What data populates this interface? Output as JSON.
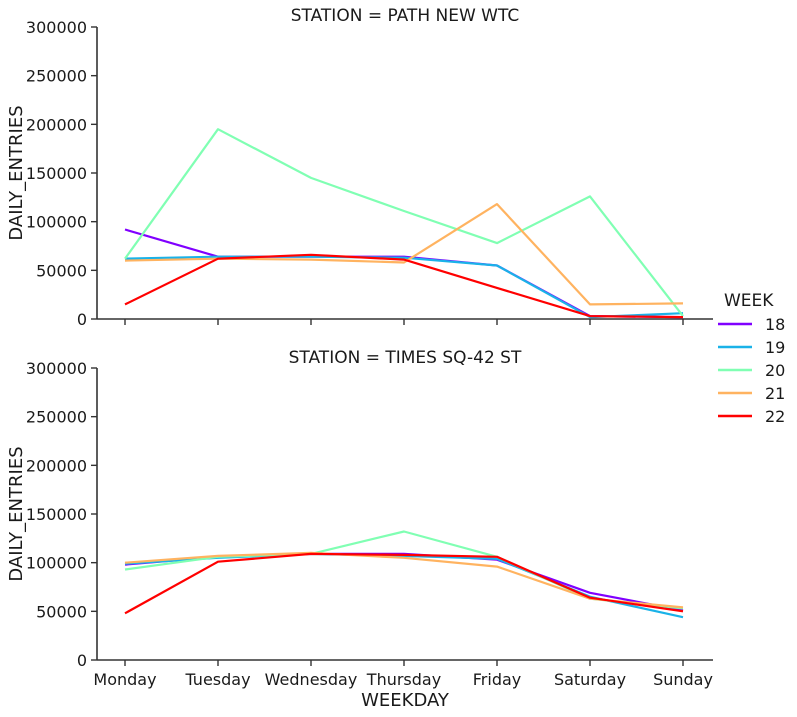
{
  "chart_data": {
    "type": "line",
    "xlabel": "WEEKDAY",
    "ylabel": "DAILY_ENTRIES",
    "ylim": [
      0,
      300000
    ],
    "yticks": [
      0,
      50000,
      100000,
      150000,
      200000,
      250000,
      300000
    ],
    "x": [
      "Monday",
      "Tuesday",
      "Wednesday",
      "Thursday",
      "Friday",
      "Saturday",
      "Sunday"
    ],
    "legend": {
      "title": "WEEK",
      "placement": "right"
    },
    "series_colors": {
      "18": "#8000ff",
      "19": "#1ab2e8",
      "20": "#80ffb3",
      "21": "#ffb360",
      "22": "#ff0000"
    },
    "facets": [
      {
        "title": "STATION = PATH NEW WTC",
        "series": [
          {
            "name": "18",
            "values": [
              92000,
              64000,
              64000,
              64000,
              55000,
              3000,
              2000
            ]
          },
          {
            "name": "19",
            "values": [
              62000,
              64000,
              64000,
              63000,
              55000,
              2000,
              6000
            ]
          },
          {
            "name": "20",
            "values": [
              62000,
              195000,
              145000,
              111000,
              78000,
              126000,
              3000
            ]
          },
          {
            "name": "21",
            "values": [
              60000,
              62000,
              61000,
              58000,
              118000,
              15000,
              16000
            ]
          },
          {
            "name": "22",
            "values": [
              15000,
              62000,
              66000,
              61000,
              32000,
              3000,
              2000
            ]
          }
        ]
      },
      {
        "title": "STATION = TIMES SQ-42 ST",
        "series": [
          {
            "name": "18",
            "values": [
              98000,
              106000,
              109000,
              109000,
              103000,
              69000,
              51000
            ]
          },
          {
            "name": "19",
            "values": [
              99000,
              105000,
              109000,
              107000,
              104000,
              65000,
              44000
            ]
          },
          {
            "name": "20",
            "values": [
              93000,
              106000,
              109000,
              132000,
              106000,
              63000,
              53000
            ]
          },
          {
            "name": "21",
            "values": [
              100000,
              107000,
              110000,
              105000,
              96000,
              63000,
              54000
            ]
          },
          {
            "name": "22",
            "values": [
              48000,
              101000,
              109000,
              108000,
              106000,
              64000,
              50000
            ]
          }
        ]
      }
    ]
  }
}
